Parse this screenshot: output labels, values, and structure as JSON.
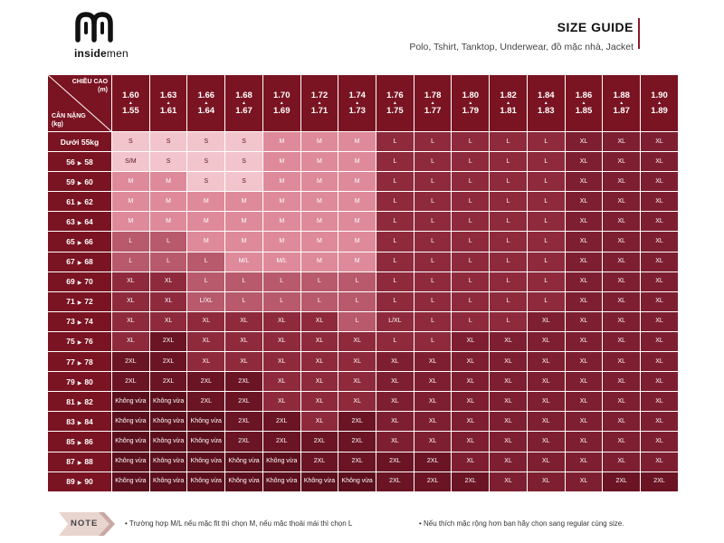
{
  "brand": {
    "name_bold": "inside",
    "name_thin": "men"
  },
  "header": {
    "title": "SIZE GUIDE",
    "subtitle": "Polo, Tshirt, Tanktop, Underwear, đồ mặc nhà, Jacket"
  },
  "table": {
    "height_label_line1": "CHIỀU CAO",
    "height_label_line2": "(m)",
    "weight_label_line1": "CÂN NẶNG",
    "weight_label_line2": "(kg)",
    "columns": [
      {
        "top": "1.60",
        "bottom": "1.55"
      },
      {
        "top": "1.63",
        "bottom": "1.61"
      },
      {
        "top": "1.66",
        "bottom": "1.64"
      },
      {
        "top": "1.68",
        "bottom": "1.67"
      },
      {
        "top": "1.70",
        "bottom": "1.69"
      },
      {
        "top": "1.72",
        "bottom": "1.71"
      },
      {
        "top": "1.74",
        "bottom": "1.73"
      },
      {
        "top": "1.76",
        "bottom": "1.75"
      },
      {
        "top": "1.78",
        "bottom": "1.77"
      },
      {
        "top": "1.80",
        "bottom": "1.79"
      },
      {
        "top": "1.82",
        "bottom": "1.81"
      },
      {
        "top": "1.84",
        "bottom": "1.83"
      },
      {
        "top": "1.86",
        "bottom": "1.85"
      },
      {
        "top": "1.88",
        "bottom": "1.87"
      },
      {
        "top": "1.90",
        "bottom": "1.89"
      }
    ],
    "rows": [
      {
        "label": "Dưới 55kg",
        "from": "",
        "to": "",
        "sizes": [
          "S",
          "S",
          "S",
          "S",
          "M",
          "M",
          "M",
          "L",
          "L",
          "L",
          "L",
          "L",
          "XL",
          "XL",
          "XL"
        ]
      },
      {
        "label": "",
        "from": "56",
        "to": "58",
        "sizes": [
          "S/M",
          "S",
          "S",
          "S",
          "M",
          "M",
          "M",
          "L",
          "L",
          "L",
          "L",
          "L",
          "XL",
          "XL",
          "XL"
        ]
      },
      {
        "label": "",
        "from": "59",
        "to": "60",
        "sizes": [
          "M",
          "M",
          "S",
          "S",
          "M",
          "M",
          "M",
          "L",
          "L",
          "L",
          "L",
          "L",
          "XL",
          "XL",
          "XL"
        ]
      },
      {
        "label": "",
        "from": "61",
        "to": "62",
        "sizes": [
          "M",
          "M",
          "M",
          "M",
          "M",
          "M",
          "M",
          "L",
          "L",
          "L",
          "L",
          "L",
          "XL",
          "XL",
          "XL"
        ]
      },
      {
        "label": "",
        "from": "63",
        "to": "64",
        "sizes": [
          "M",
          "M",
          "M",
          "M",
          "M",
          "M",
          "M",
          "L",
          "L",
          "L",
          "L",
          "L",
          "XL",
          "XL",
          "XL"
        ]
      },
      {
        "label": "",
        "from": "65",
        "to": "66",
        "sizes": [
          "L",
          "L",
          "M",
          "M",
          "M",
          "M",
          "M",
          "L",
          "L",
          "L",
          "L",
          "L",
          "XL",
          "XL",
          "XL"
        ]
      },
      {
        "label": "",
        "from": "67",
        "to": "68",
        "sizes": [
          "L",
          "L",
          "L",
          "M/L",
          "M/L",
          "M",
          "M",
          "L",
          "L",
          "L",
          "L",
          "L",
          "XL",
          "XL",
          "XL"
        ]
      },
      {
        "label": "",
        "from": "69",
        "to": "70",
        "sizes": [
          "XL",
          "XL",
          "L",
          "L",
          "L",
          "L",
          "L",
          "L",
          "L",
          "L",
          "L",
          "L",
          "XL",
          "XL",
          "XL"
        ]
      },
      {
        "label": "",
        "from": "71",
        "to": "72",
        "sizes": [
          "XL",
          "XL",
          "L/XL",
          "L",
          "L",
          "L",
          "L",
          "L",
          "L",
          "L",
          "L",
          "L",
          "XL",
          "XL",
          "XL"
        ]
      },
      {
        "label": "",
        "from": "73",
        "to": "74",
        "sizes": [
          "XL",
          "XL",
          "XL",
          "XL",
          "XL",
          "XL",
          "L",
          "L/XL",
          "L",
          "L",
          "L",
          "XL",
          "XL",
          "XL",
          "XL"
        ]
      },
      {
        "label": "",
        "from": "75",
        "to": "76",
        "sizes": [
          "XL",
          "2XL",
          "XL",
          "XL",
          "XL",
          "XL",
          "XL",
          "L",
          "L",
          "XL",
          "XL",
          "XL",
          "XL",
          "XL",
          "XL"
        ]
      },
      {
        "label": "",
        "from": "77",
        "to": "78",
        "sizes": [
          "2XL",
          "2XL",
          "XL",
          "XL",
          "XL",
          "XL",
          "XL",
          "XL",
          "XL",
          "XL",
          "XL",
          "XL",
          "XL",
          "XL",
          "XL"
        ]
      },
      {
        "label": "",
        "from": "79",
        "to": "80",
        "sizes": [
          "2XL",
          "2XL",
          "2XL",
          "2XL",
          "XL",
          "XL",
          "XL",
          "XL",
          "XL",
          "XL",
          "XL",
          "XL",
          "XL",
          "XL",
          "XL"
        ]
      },
      {
        "label": "",
        "from": "81",
        "to": "82",
        "sizes": [
          "Không vừa",
          "Không vừa",
          "2XL",
          "2XL",
          "XL",
          "XL",
          "XL",
          "XL",
          "XL",
          "XL",
          "XL",
          "XL",
          "XL",
          "XL",
          "XL"
        ]
      },
      {
        "label": "",
        "from": "83",
        "to": "84",
        "sizes": [
          "Không vừa",
          "Không vừa",
          "Không vừa",
          "2XL",
          "2XL",
          "XL",
          "2XL",
          "XL",
          "XL",
          "XL",
          "XL",
          "XL",
          "XL",
          "XL",
          "XL"
        ]
      },
      {
        "label": "",
        "from": "85",
        "to": "86",
        "sizes": [
          "Không vừa",
          "Không vừa",
          "Không vừa",
          "2XL",
          "2XL",
          "2XL",
          "2XL",
          "XL",
          "XL",
          "XL",
          "XL",
          "XL",
          "XL",
          "XL",
          "XL"
        ]
      },
      {
        "label": "",
        "from": "87",
        "to": "88",
        "sizes": [
          "Không vừa",
          "Không vừa",
          "Không vừa",
          "Không vừa",
          "Không vừa",
          "2XL",
          "2XL",
          "2XL",
          "2XL",
          "XL",
          "XL",
          "XL",
          "XL",
          "XL",
          "XL"
        ]
      },
      {
        "label": "",
        "from": "89",
        "to": "90",
        "sizes": [
          "Không vừa",
          "Không vừa",
          "Không vừa",
          "Không vừa",
          "Không vừa",
          "Không vừa",
          "Không vừa",
          "2XL",
          "2XL",
          "2XL",
          "XL",
          "XL",
          "XL",
          "2XL",
          "2XL"
        ]
      }
    ]
  },
  "note": {
    "label": "NOTE",
    "items": [
      "• Trường hợp M/L nếu mặc fit thì chọn M, nếu mặc thoải mái thì chọn L",
      "• Nếu thích mặc rộng hơn bạn hãy chọn sang regular cùng size."
    ]
  },
  "colors": {
    "primary": "#7a1422",
    "light": "#f2c4cc",
    "mid": "#de8a9a"
  }
}
